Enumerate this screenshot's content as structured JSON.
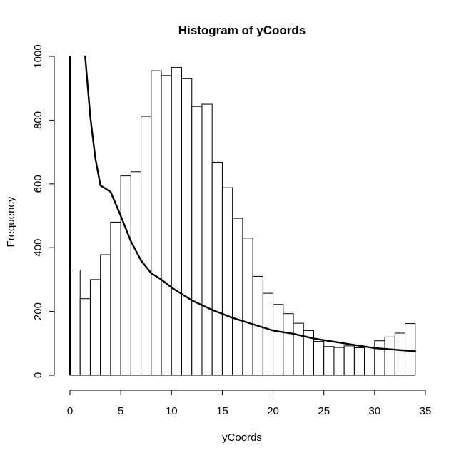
{
  "chart_data": {
    "type": "bar",
    "title": "Histogram of yCoords",
    "xlabel": "yCoords",
    "ylabel": "Frequency",
    "xlim": [
      0,
      35
    ],
    "ylim": [
      0,
      1000
    ],
    "x_ticks": [
      "0",
      "5",
      "10",
      "15",
      "20",
      "25",
      "30",
      "35"
    ],
    "y_ticks": [
      "0",
      "200",
      "400",
      "600",
      "800",
      "1000"
    ],
    "grid": false,
    "bins": {
      "start": 0,
      "width": 1,
      "values": [
        330,
        240,
        300,
        378,
        480,
        625,
        638,
        812,
        955,
        940,
        965,
        930,
        843,
        850,
        668,
        588,
        492,
        430,
        310,
        257,
        222,
        193,
        163,
        140,
        106,
        90,
        87,
        92,
        86,
        88,
        108,
        120,
        132,
        162
      ]
    },
    "curve": {
      "type": "line",
      "x": [
        1.5,
        2,
        2.5,
        3,
        4,
        5,
        6,
        7,
        8,
        9,
        10,
        12,
        14,
        16,
        18,
        20,
        22,
        24,
        26,
        28,
        30,
        32,
        34
      ],
      "values": [
        1000,
        810,
        680,
        595,
        575,
        500,
        420,
        360,
        320,
        300,
        275,
        235,
        205,
        180,
        160,
        140,
        130,
        115,
        105,
        95,
        85,
        80,
        75
      ]
    },
    "vertical_line_x": 0,
    "colors": {
      "bar_fill": "#ffffff",
      "bar_stroke": "#000000",
      "curve": "#000000"
    }
  }
}
